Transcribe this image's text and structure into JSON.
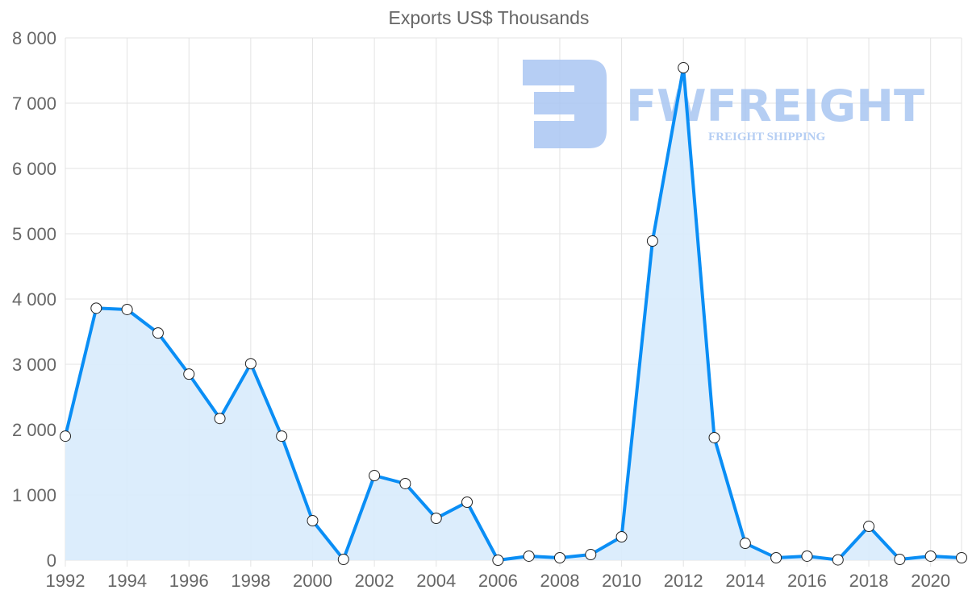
{
  "chart_data": {
    "type": "line",
    "title": "Exports US$ Thousands",
    "xlabel": "",
    "ylabel": "",
    "x": [
      1992,
      1993,
      1994,
      1995,
      1996,
      1997,
      1998,
      1999,
      2000,
      2001,
      2002,
      2003,
      2004,
      2005,
      2006,
      2007,
      2008,
      2009,
      2010,
      2011,
      2012,
      2013,
      2014,
      2015,
      2016,
      2017,
      2018,
      2019,
      2020,
      2021
    ],
    "series": [
      {
        "name": "Exports US$ Thousands",
        "values": [
          1900,
          3860,
          3840,
          3480,
          2850,
          2170,
          3010,
          1900,
          605,
          12,
          1296,
          1173,
          642,
          889,
          0,
          62,
          37,
          86,
          358,
          4889,
          7543,
          1877,
          259,
          37,
          62,
          5,
          518,
          12,
          62,
          37
        ]
      }
    ],
    "ylim": [
      0,
      8000
    ],
    "yticks": [
      "0",
      "1 000",
      "2 000",
      "3 000",
      "4 000",
      "5 000",
      "6 000",
      "7 000",
      "8 000"
    ],
    "xticks": [
      "1992",
      "1994",
      "1996",
      "1998",
      "2000",
      "2002",
      "2004",
      "2006",
      "2008",
      "2010",
      "2012",
      "2014",
      "2016",
      "2018",
      "2020"
    ],
    "grid": true,
    "fill": true,
    "colors": {
      "line": "#0a8ef5",
      "fill": "#d8ebfc",
      "grid": "#e3e3e3",
      "text": "#666666",
      "watermark": "#a9c6f2"
    }
  },
  "watermark": {
    "brand": "FWFREIGHT",
    "tagline": "FREIGHT SHIPPING"
  }
}
